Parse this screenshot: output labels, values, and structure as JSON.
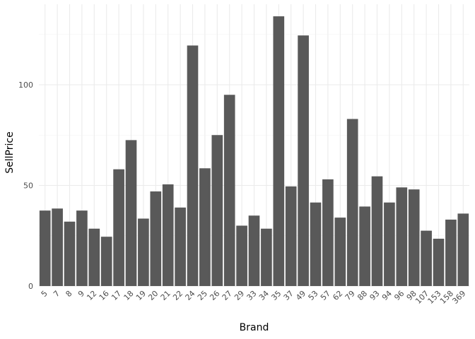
{
  "chart_data": {
    "type": "bar",
    "title": "",
    "xlabel": "Brand",
    "ylabel": "SellPrice",
    "categories": [
      "5",
      "7",
      "8",
      "9",
      "12",
      "16",
      "17",
      "18",
      "19",
      "20",
      "21",
      "22",
      "24",
      "25",
      "26",
      "27",
      "29",
      "33",
      "34",
      "35",
      "37",
      "49",
      "53",
      "57",
      "62",
      "79",
      "88",
      "93",
      "94",
      "96",
      "98",
      "107",
      "153",
      "158",
      "369"
    ],
    "values": [
      37.5,
      38.5,
      32,
      37.5,
      28.5,
      24.5,
      58,
      72.5,
      33.5,
      47,
      50.5,
      39,
      119.5,
      58.5,
      75,
      95,
      30,
      35,
      28.5,
      134,
      49.5,
      124.5,
      41.5,
      53,
      34,
      83,
      39.5,
      54.5,
      41.5,
      49,
      48,
      27.5,
      23.5,
      33,
      36
    ],
    "ylim": [
      0,
      140
    ],
    "yticks": [
      0,
      50,
      100
    ],
    "grid": true,
    "legend": "none",
    "bar_color": "#595959",
    "grid_color": "#ebebeb"
  }
}
